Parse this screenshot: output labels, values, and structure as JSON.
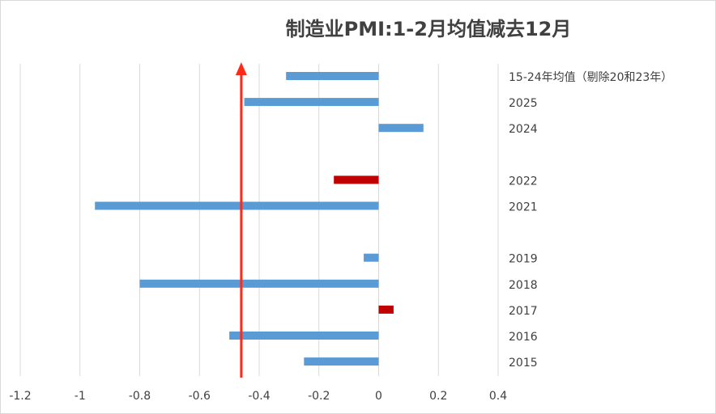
{
  "chart_data": {
    "type": "bar",
    "orientation": "horizontal",
    "title": "制造业PMI:1-2月均值减去12月",
    "xlabel": "",
    "ylabel": "",
    "xlim": [
      -1.2,
      0.4
    ],
    "x_ticks": [
      "-1.2",
      "-1",
      "-0.8",
      "-0.6",
      "-0.4",
      "-0.2",
      "0",
      "0.2",
      "0.4"
    ],
    "x_tick_values": [
      -1.2,
      -1,
      -0.8,
      -0.6,
      -0.4,
      -0.2,
      0,
      0.2,
      0.4
    ],
    "grid": "vertical",
    "legend": "none",
    "categories": [
      "15-24年均值（剔除20和23年）",
      "2025",
      "2024",
      "",
      "2022",
      "2021",
      "",
      "2019",
      "2018",
      "2017",
      "2016",
      "2015"
    ],
    "values": [
      -0.31,
      -0.45,
      0.15,
      null,
      -0.15,
      -0.95,
      null,
      -0.05,
      -0.8,
      0.05,
      -0.5,
      -0.25
    ],
    "bar_colors": [
      "#5b9bd5",
      "#5b9bd5",
      "#5b9bd5",
      null,
      "#c00000",
      "#5b9bd5",
      null,
      "#5b9bd5",
      "#5b9bd5",
      "#c00000",
      "#5b9bd5",
      "#5b9bd5"
    ],
    "annotation_arrow": {
      "x": -0.46,
      "direction": "up",
      "color": "#ff2a1a"
    },
    "colors": {
      "bar_default": "#5b9bd5",
      "bar_highlight": "#c00000",
      "grid": "#d9d9d9",
      "text": "#404040"
    }
  }
}
